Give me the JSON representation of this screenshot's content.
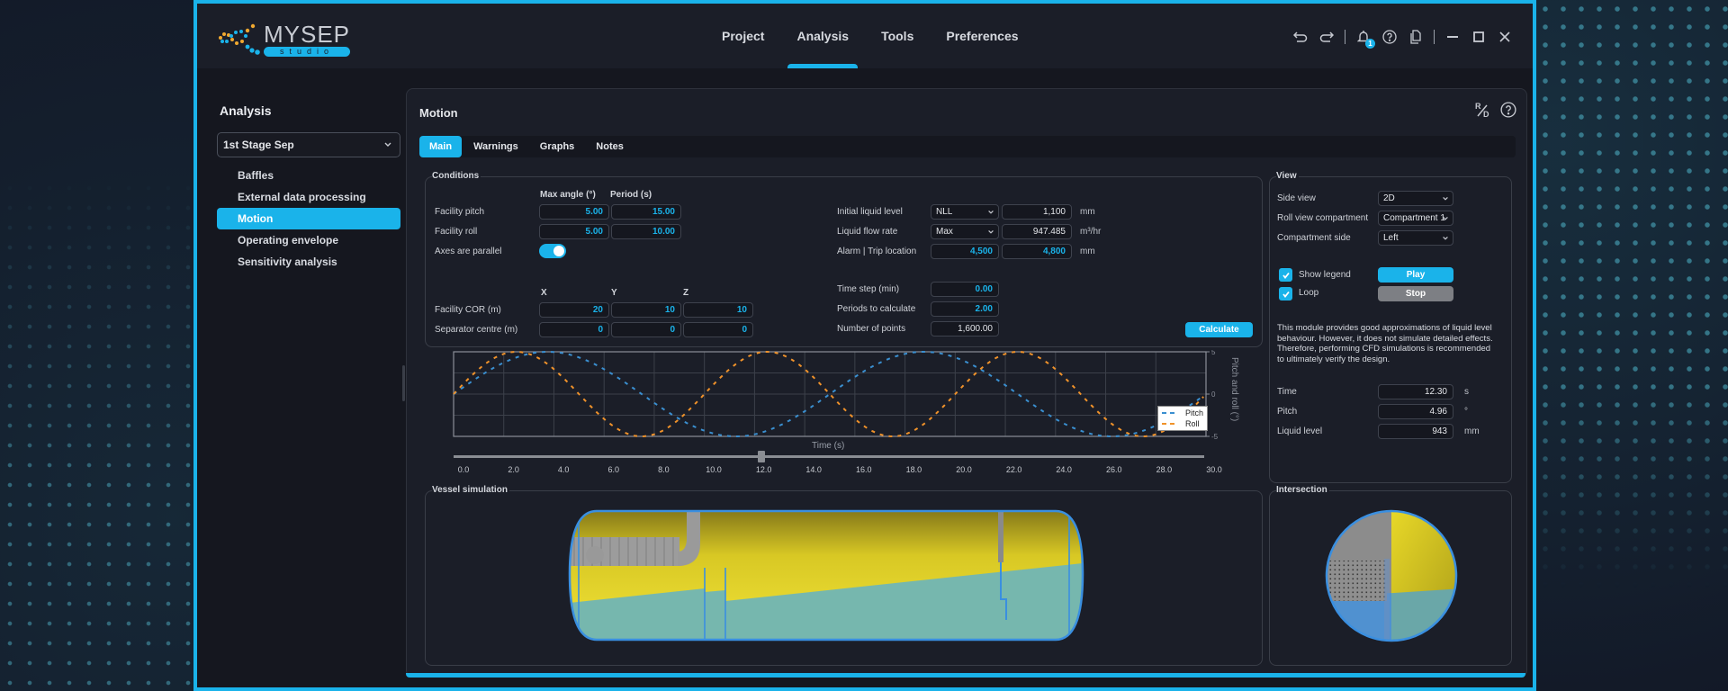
{
  "app": {
    "logo_main": "MYSEP",
    "logo_sub": "studio",
    "nav": [
      {
        "label": "Project",
        "active": false
      },
      {
        "label": "Analysis",
        "active": true
      },
      {
        "label": "Tools",
        "active": false
      },
      {
        "label": "Preferences",
        "active": false
      }
    ],
    "toolbar": {
      "icons": [
        "undo-icon",
        "redo-icon",
        "bell-icon",
        "help-icon",
        "copy-icon",
        "minimize-icon",
        "maximize-icon",
        "close-icon"
      ],
      "notification_count": "1"
    },
    "accent_color": "#1ab3ea"
  },
  "sidebar": {
    "title": "Analysis",
    "selector": "1st Stage Sep",
    "items": [
      {
        "label": "Baffles",
        "active": false
      },
      {
        "label": "External data processing",
        "active": false
      },
      {
        "label": "Motion",
        "active": true
      },
      {
        "label": "Operating envelope",
        "active": false
      },
      {
        "label": "Sensitivity analysis",
        "active": false
      }
    ]
  },
  "panel": {
    "title": "Motion",
    "icons": [
      "rd-icon",
      "help-icon"
    ],
    "rd_label_top": "R",
    "rd_label_bottom": "D",
    "tabs": [
      {
        "label": "Main",
        "active": true
      },
      {
        "label": "Warnings",
        "active": false
      },
      {
        "label": "Graphs",
        "active": false
      },
      {
        "label": "Notes",
        "active": false
      }
    ]
  },
  "conditions": {
    "title": "Conditions",
    "col_max_angle": "Max angle (°)",
    "col_period": "Period (s)",
    "facility_pitch": {
      "label": "Facility pitch",
      "max_angle": "5.00",
      "period": "15.00"
    },
    "facility_roll": {
      "label": "Facility roll",
      "max_angle": "5.00",
      "period": "10.00"
    },
    "axes_parallel": {
      "label": "Axes are parallel",
      "on": true
    },
    "col_x": "X",
    "col_y": "Y",
    "col_z": "Z",
    "facility_cor": {
      "label": "Facility COR (m)",
      "x": "20",
      "y": "10",
      "z": "10"
    },
    "separator_centre": {
      "label": "Separator centre (m)",
      "x": "0",
      "y": "0",
      "z": "0"
    },
    "initial_liquid_level": {
      "label": "Initial liquid level",
      "select": "NLL",
      "value": "1,100",
      "unit": "mm"
    },
    "liquid_flow_rate": {
      "label": "Liquid flow rate",
      "select": "Max",
      "value": "947.485",
      "unit": "m³/hr"
    },
    "alarm_trip": {
      "label": "Alarm | Trip location",
      "alarm": "4,500",
      "trip": "4,800",
      "unit": "mm"
    },
    "time_step": {
      "label": "Time step (min)",
      "value": "0.00"
    },
    "periods": {
      "label": "Periods to calculate",
      "value": "2.00"
    },
    "num_points": {
      "label": "Number of points",
      "value": "1,600.00"
    },
    "calculate_label": "Calculate"
  },
  "view": {
    "title": "View",
    "side_view": {
      "label": "Side view",
      "value": "2D"
    },
    "roll_compartment": {
      "label": "Roll view compartment",
      "value": "Compartment 1"
    },
    "compartment_side": {
      "label": "Compartment side",
      "value": "Left"
    },
    "show_legend": {
      "label": "Show legend",
      "checked": true
    },
    "loop": {
      "label": "Loop",
      "checked": true
    },
    "play_label": "Play",
    "stop_label": "Stop",
    "note": "This module provides good approximations of liquid level behaviour. However, it does not simulate detailed effects. Therefore, performing CFD simulations is recommended to ultimately verify the design.",
    "time": {
      "label": "Time",
      "value": "12.30",
      "unit": "s"
    },
    "pitch": {
      "label": "Pitch",
      "value": "4.96",
      "unit": "°"
    },
    "liquid_level": {
      "label": "Liquid level",
      "value": "943",
      "unit": "mm"
    }
  },
  "chart_data": {
    "type": "line",
    "title": "",
    "xlabel": "Time (s)",
    "ylabel": "Pitch and roll (°)",
    "xlim": [
      0,
      30
    ],
    "ylim": [
      -5,
      5
    ],
    "x_ticks": [
      "0.0",
      "2.0",
      "4.0",
      "6.0",
      "8.0",
      "10.0",
      "12.0",
      "14.0",
      "16.0",
      "18.0",
      "20.0",
      "22.0",
      "24.0",
      "26.0",
      "28.0",
      "30.0"
    ],
    "y_ticks": [
      "5",
      "0",
      "-5"
    ],
    "grid": true,
    "legend_position": "lower right",
    "x": [
      0,
      2.5,
      3.75,
      5,
      7.5,
      10,
      11.25,
      12.5,
      15,
      17.5,
      18.75,
      20,
      22.5,
      25,
      26.25,
      27.5,
      30
    ],
    "series": [
      {
        "name": "Pitch",
        "color": "#3a8fd0",
        "style": "dashed",
        "values": [
          0,
          4.33,
          5.0,
          4.33,
          0,
          -4.33,
          -5.0,
          -4.33,
          0,
          4.33,
          5.0,
          4.33,
          0,
          -4.33,
          -5.0,
          -4.33,
          0
        ]
      },
      {
        "name": "Roll",
        "color": "#f0922a",
        "style": "dashed",
        "values": [
          0,
          5.0,
          3.83,
          0,
          -5.0,
          0,
          3.83,
          5.0,
          0,
          -5.0,
          -3.83,
          0,
          5.0,
          0,
          -3.83,
          -5.0,
          0
        ]
      }
    ],
    "slider_position": 12.3
  },
  "vessel": {
    "title": "Vessel simulation",
    "colors": {
      "gas": "#e8d82a",
      "liquid": "#6fb8b0",
      "outline": "#3a8fe0",
      "internals": "#9a9a9a"
    }
  },
  "intersection": {
    "title": "Intersection"
  }
}
